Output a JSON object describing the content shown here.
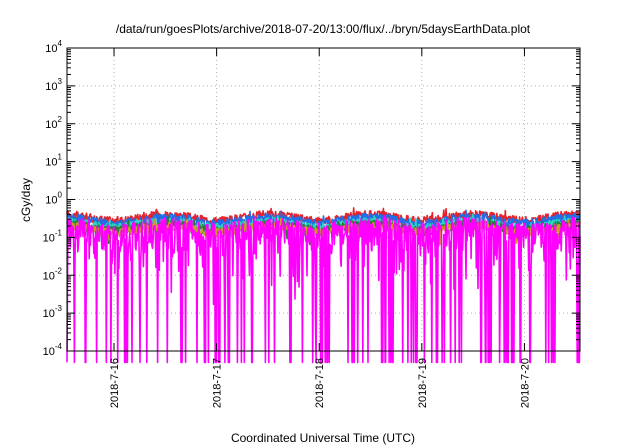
{
  "chart_data": {
    "type": "line",
    "title": "/data/run/goesPlots/archive/2018-07-20/13:00/flux/../bryn/5daysEarthData.plot",
    "xlabel": "Coordinated Universal Time (UTC)",
    "ylabel": "cGy/day",
    "yscale": "log",
    "ylim": [
      0.0001,
      10000
    ],
    "xlim": [
      "2018-07-15 13:00",
      "2018-07-20 13:00"
    ],
    "grid": true,
    "legend": "none",
    "y_ticks": [
      {
        "base": "10",
        "exp": "-4"
      },
      {
        "base": "10",
        "exp": "-3"
      },
      {
        "base": "10",
        "exp": "-2"
      },
      {
        "base": "10",
        "exp": "-1"
      },
      {
        "base": "10",
        "exp": "0"
      },
      {
        "base": "10",
        "exp": "1"
      },
      {
        "base": "10",
        "exp": "2"
      },
      {
        "base": "10",
        "exp": "3"
      },
      {
        "base": "10",
        "exp": "4"
      }
    ],
    "x_ticks": [
      "2018-7-16",
      "2018-7-17",
      "2018-7-18",
      "2018-7-19",
      "2018-7-20"
    ],
    "series": [
      {
        "color": "#e8222a",
        "base_level": 0.34,
        "noise": 0.1
      },
      {
        "color": "#1f6fe8",
        "base_level": 0.28,
        "noise": 0.1
      },
      {
        "color": "#2ad4c0",
        "base_level": 0.22,
        "noise": 0.07
      },
      {
        "color": "#2a7a3a",
        "base_level": 0.19,
        "noise": 0.06
      },
      {
        "color": "#c8a020",
        "base_level": 0.17,
        "noise": 0.05
      },
      {
        "color": "#ff00ff",
        "base_level": 0.13,
        "noise": 0.18,
        "dropouts": [
          [
            "2018-07-19 20:00",
            "2018-07-19 20:15"
          ],
          [
            "2018-07-19 23:00",
            "2018-07-19 23:15"
          ]
        ]
      }
    ]
  }
}
